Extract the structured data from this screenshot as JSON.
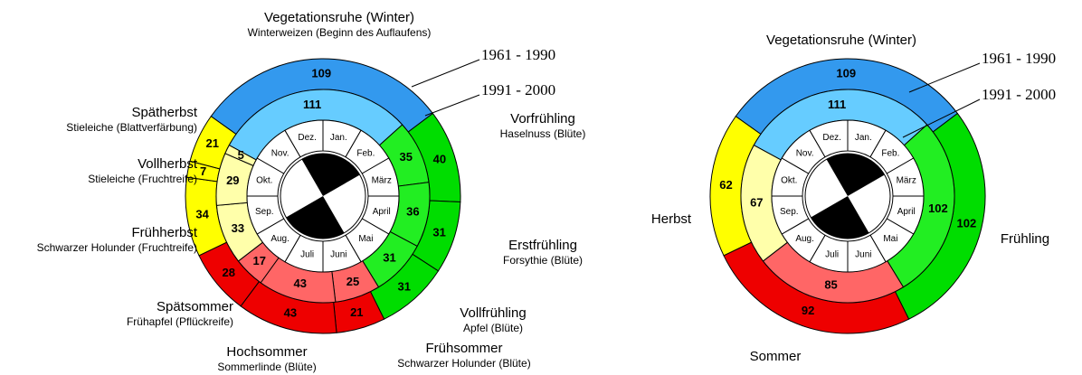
{
  "chart_data": [
    {
      "type": "ring",
      "months": [
        "Jan.",
        "Feb.",
        "März",
        "April",
        "Mai",
        "Juni",
        "Juli",
        "Aug.",
        "Sep.",
        "Okt.",
        "Nov.",
        "Dez."
      ],
      "seasons": [
        {
          "name": "Vegetationsruhe (Winter)",
          "indicator": "Winterweizen (Beginn des Auflaufens)"
        },
        {
          "name": "Vorfrühling",
          "indicator": "Haselnuss (Blüte)"
        },
        {
          "name": "Erstfrühling",
          "indicator": "Forsythie (Blüte)"
        },
        {
          "name": "Vollfrühling",
          "indicator": "Apfel (Blüte)"
        },
        {
          "name": "Frühsommer",
          "indicator": "Schwarzer Holunder (Blüte)"
        },
        {
          "name": "Hochsommer",
          "indicator": "Sommerlinde (Blüte)"
        },
        {
          "name": "Spätsommer",
          "indicator": "Frühapfel (Pflückreife)"
        },
        {
          "name": "Frühherbst",
          "indicator": "Schwarzer Holunder (Fruchtreife)"
        },
        {
          "name": "Vollherbst",
          "indicator": "Stieleiche (Fruchtreife)"
        },
        {
          "name": "Spätherbst",
          "indicator": "Stieleiche (Blattverfärbung)"
        }
      ],
      "series": [
        {
          "name": "1961 - 1990",
          "values": [
            109,
            40,
            31,
            31,
            21,
            43,
            28,
            34,
            7,
            21
          ],
          "colors": [
            "#3399ee",
            "#00dd00",
            "#00dd00",
            "#00dd00",
            "#ee0000",
            "#ee0000",
            "#ee0000",
            "#ffff00",
            "#ffff00",
            "#ffff00"
          ]
        },
        {
          "name": "1991 - 2000",
          "values": [
            111,
            35,
            36,
            31,
            25,
            43,
            17,
            33,
            29,
            5
          ],
          "colors": [
            "#66ccff",
            "#22ee22",
            "#22ee22",
            "#22ee22",
            "#ff6666",
            "#ff6666",
            "#ff6666",
            "#ffffaa",
            "#ffffaa",
            "#ffffaa"
          ]
        }
      ]
    },
    {
      "type": "ring",
      "months": [
        "Jan.",
        "Feb.",
        "März",
        "April",
        "Mai",
        "Juni",
        "Juli",
        "Aug.",
        "Sep.",
        "Okt.",
        "Nov.",
        "Dez."
      ],
      "seasons": [
        {
          "name": "Vegetationsruhe (Winter)"
        },
        {
          "name": "Frühling"
        },
        {
          "name": "Sommer"
        },
        {
          "name": "Herbst"
        }
      ],
      "series": [
        {
          "name": "1961 - 1990",
          "values": [
            109,
            102,
            92,
            62
          ],
          "colors": [
            "#3399ee",
            "#00dd00",
            "#ee0000",
            "#ffff00"
          ]
        },
        {
          "name": "1991 - 2000",
          "values": [
            111,
            102,
            85,
            67
          ],
          "colors": [
            "#66ccff",
            "#22ee22",
            "#ff6666",
            "#ffffaa"
          ]
        }
      ]
    }
  ]
}
